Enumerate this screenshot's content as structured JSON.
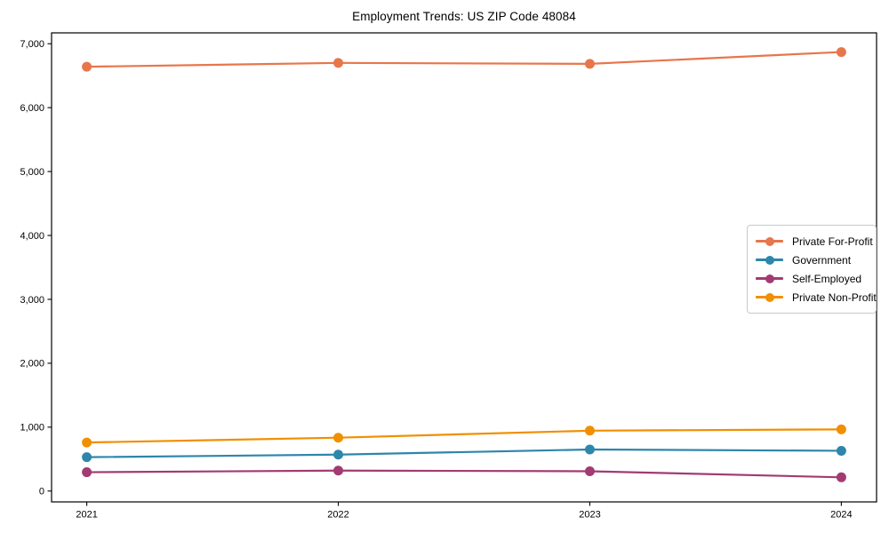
{
  "chart_data": {
    "type": "line",
    "title": "Employment Trends: US ZIP Code 48084",
    "categories": [
      "2021",
      "2022",
      "2023",
      "2024"
    ],
    "series": [
      {
        "name": "Private For-Profit",
        "color": "#E8764B",
        "values": [
          6640,
          6700,
          6685,
          6870
        ]
      },
      {
        "name": "Government",
        "color": "#2E86AB",
        "values": [
          530,
          570,
          650,
          630
        ]
      },
      {
        "name": "Self-Employed",
        "color": "#A23B72",
        "values": [
          295,
          320,
          310,
          215
        ]
      },
      {
        "name": "Private Non-Profit",
        "color": "#F18F01",
        "values": [
          760,
          835,
          945,
          965
        ]
      }
    ],
    "xlabel": "",
    "ylabel": "",
    "ylim": [
      -170,
      7170
    ],
    "yticks": [
      0,
      1000,
      2000,
      3000,
      4000,
      5000,
      6000,
      7000
    ],
    "ytick_labels": [
      "0",
      "1,000",
      "2,000",
      "3,000",
      "4,000",
      "5,000",
      "6,000",
      "7,000"
    ],
    "grid": false,
    "legend_position": "center-right",
    "marker": "circle",
    "axis_color": "#000000",
    "background_color": "#ffffff"
  }
}
